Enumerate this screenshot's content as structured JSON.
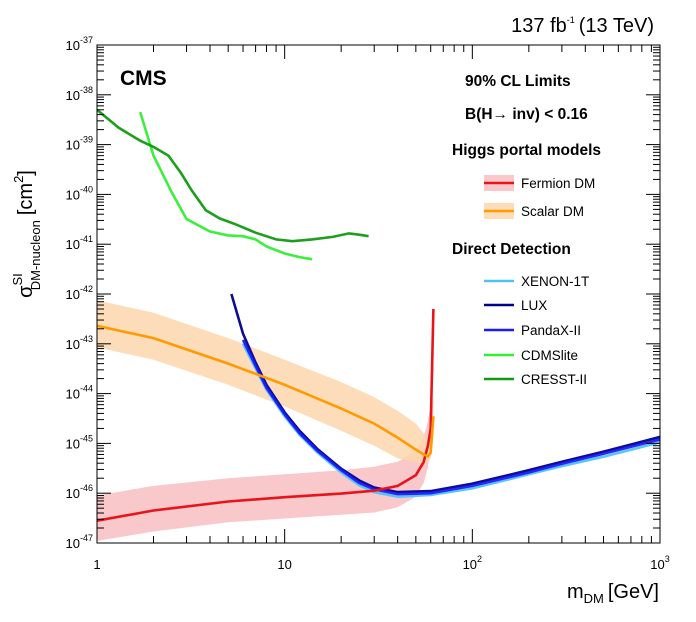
{
  "header": {
    "lumi_value": "137 fb",
    "lumi_exp": "-1",
    "energy": "(13 TeV)",
    "experiment": "CMS"
  },
  "annotations": {
    "cl_limits": "90% CL Limits",
    "branching": "B(H→ inv) < 0.16"
  },
  "legend": {
    "higgs_heading": "Higgs portal models",
    "direct_heading": "Direct Detection"
  },
  "axes": {
    "x_title_main": "m",
    "x_title_sub": "DM",
    "x_title_unit": "[GeV]",
    "y_title_main": "σ",
    "y_title_sup": "SI",
    "y_title_sub": "DM-nucleon",
    "y_title_unit": "[cm",
    "y_title_unit_sup": "2",
    "y_title_close": "]",
    "x_ticks": [
      {
        "value": 1,
        "base": "1",
        "exp": ""
      },
      {
        "value": 10,
        "base": "10",
        "exp": ""
      },
      {
        "value": 100,
        "base": "10",
        "exp": "2"
      },
      {
        "value": 1000,
        "base": "10",
        "exp": "3"
      }
    ],
    "y_ticks": [
      {
        "value": -37,
        "base": "10",
        "exp": "-37"
      },
      {
        "value": -38,
        "base": "10",
        "exp": "-38"
      },
      {
        "value": -39,
        "base": "10",
        "exp": "-39"
      },
      {
        "value": -40,
        "base": "10",
        "exp": "-40"
      },
      {
        "value": -41,
        "base": "10",
        "exp": "-41"
      },
      {
        "value": -42,
        "base": "10",
        "exp": "-42"
      },
      {
        "value": -43,
        "base": "10",
        "exp": "-43"
      },
      {
        "value": -44,
        "base": "10",
        "exp": "-44"
      },
      {
        "value": -45,
        "base": "10",
        "exp": "-45"
      },
      {
        "value": -46,
        "base": "10",
        "exp": "-46"
      },
      {
        "value": -47,
        "base": "10",
        "exp": "-47"
      }
    ]
  },
  "chart_data": {
    "type": "line",
    "x_scale": "log",
    "y_scale": "log",
    "xlim": [
      1,
      1000
    ],
    "ylim": [
      1e-47,
      1e-37
    ],
    "grid": false,
    "legend_position": "right",
    "bands": [
      {
        "name": "Fermion DM",
        "color": "#e8141c",
        "band_color": "#f5a3a6",
        "x": [
          1,
          2,
          5,
          10,
          20,
          30,
          40,
          50,
          55,
          58,
          60,
          62
        ],
        "y": [
          2.8e-47,
          4.5e-47,
          6.8e-47,
          8.3e-47,
          9.8e-47,
          1.12e-46,
          1.4e-46,
          2.3e-46,
          4.2e-46,
          9e-46,
          2e-45,
          5e-43
        ],
        "y_low": [
          1.1e-47,
          1.7e-47,
          2.6e-47,
          3.1e-47,
          3.7e-47,
          4.1e-47,
          5.2e-47,
          8.5e-47,
          1.6e-46,
          3.3e-46,
          7.5e-46,
          3e-44
        ],
        "y_high": [
          9e-47,
          1.4e-46,
          2e-46,
          2.4e-46,
          2.9e-46,
          3.4e-46,
          4.3e-46,
          7e-46,
          1.3e-45,
          2.8e-45,
          6e-45,
          5e-43
        ]
      },
      {
        "name": "Scalar DM",
        "color": "#ff9a00",
        "band_color": "#fcd6ad",
        "x": [
          1,
          2,
          5,
          10,
          20,
          30,
          40,
          50,
          55,
          58,
          60,
          62
        ],
        "y": [
          2.3e-43,
          1.3e-43,
          4e-44,
          1.5e-44,
          5e-45,
          2.5e-45,
          1.3e-45,
          7.5e-46,
          6e-46,
          5.5e-46,
          6.5e-46,
          3.5e-45
        ],
        "y_low": [
          8.5e-44,
          4.8e-44,
          1.5e-44,
          5.5e-45,
          1.8e-45,
          9e-46,
          5e-46,
          4.2e-46,
          3.9e-46,
          4e-46,
          5e-46,
          1.5e-45
        ],
        "y_high": [
          7.5e-43,
          4.2e-43,
          1.3e-43,
          4.8e-44,
          1.7e-44,
          8.5e-45,
          4.5e-45,
          2.5e-45,
          1.6e-45,
          1.1e-45,
          1.5e-45,
          1e-44
        ]
      }
    ],
    "series": [
      {
        "name": "XENON-1T",
        "color": "#4fc3f7",
        "x": [
          6,
          7,
          8,
          10,
          12,
          15,
          20,
          25,
          30,
          40,
          60,
          100,
          200,
          300,
          500,
          1000
        ],
        "y": [
          1e-43,
          3.2e-44,
          1.2e-44,
          3.5e-45,
          1.5e-45,
          6.5e-46,
          2.6e-46,
          1.45e-46,
          1.05e-46,
          8.5e-47,
          9.2e-47,
          1.25e-46,
          2.4e-46,
          3.5e-46,
          5.4e-46,
          1.05e-45
        ]
      },
      {
        "name": "LUX",
        "color": "#00008b",
        "x": [
          5.2,
          6,
          7,
          8,
          10,
          12,
          15,
          20,
          25,
          30,
          40,
          60,
          100,
          200,
          300,
          500,
          1000
        ],
        "y": [
          1e-42,
          1.6e-43,
          4.2e-44,
          1.5e-44,
          4.2e-45,
          1.8e-45,
          7.6e-46,
          3.1e-46,
          1.8e-46,
          1.3e-46,
          1.05e-46,
          1.1e-46,
          1.55e-46,
          2.9e-46,
          4.3e-46,
          6.8e-46,
          1.35e-45
        ]
      },
      {
        "name": "PandaX-II",
        "color": "#1a1aff",
        "x": [
          6,
          7,
          8,
          10,
          12,
          15,
          20,
          25,
          30,
          40,
          60,
          100,
          200,
          300,
          500,
          1000
        ],
        "y": [
          1.2e-43,
          3.6e-44,
          1.3e-44,
          3.8e-45,
          1.6e-45,
          7e-46,
          2.9e-46,
          1.6e-46,
          1.2e-46,
          9.6e-47,
          1e-46,
          1.4e-46,
          2.6e-46,
          3.9e-46,
          6.2e-46,
          1.2e-45
        ]
      },
      {
        "name": "CDMSlite",
        "color": "#33ee33",
        "x": [
          1.7,
          2,
          2.5,
          3,
          4,
          5,
          6,
          7,
          8,
          10,
          12,
          14
        ],
        "y": [
          4.5e-39,
          6e-40,
          1.1e-40,
          3.2e-41,
          1.8e-41,
          1.5e-41,
          1.45e-41,
          1.25e-41,
          9e-42,
          6.5e-42,
          5.5e-42,
          5e-42
        ]
      },
      {
        "name": "CRESST-II",
        "color": "#119911",
        "x": [
          1,
          1.3,
          1.7,
          2,
          2.4,
          2.8,
          3.2,
          3.8,
          4.5,
          5.5,
          7,
          9,
          11,
          14,
          18,
          22,
          25,
          28
        ],
        "y": [
          5e-39,
          2.2e-39,
          1.2e-39,
          9e-40,
          6e-40,
          2.7e-40,
          1.2e-40,
          4.8e-41,
          3.3e-41,
          2.5e-41,
          1.7e-41,
          1.25e-41,
          1.15e-41,
          1.25e-41,
          1.4e-41,
          1.65e-41,
          1.55e-41,
          1.45e-41
        ]
      }
    ]
  }
}
